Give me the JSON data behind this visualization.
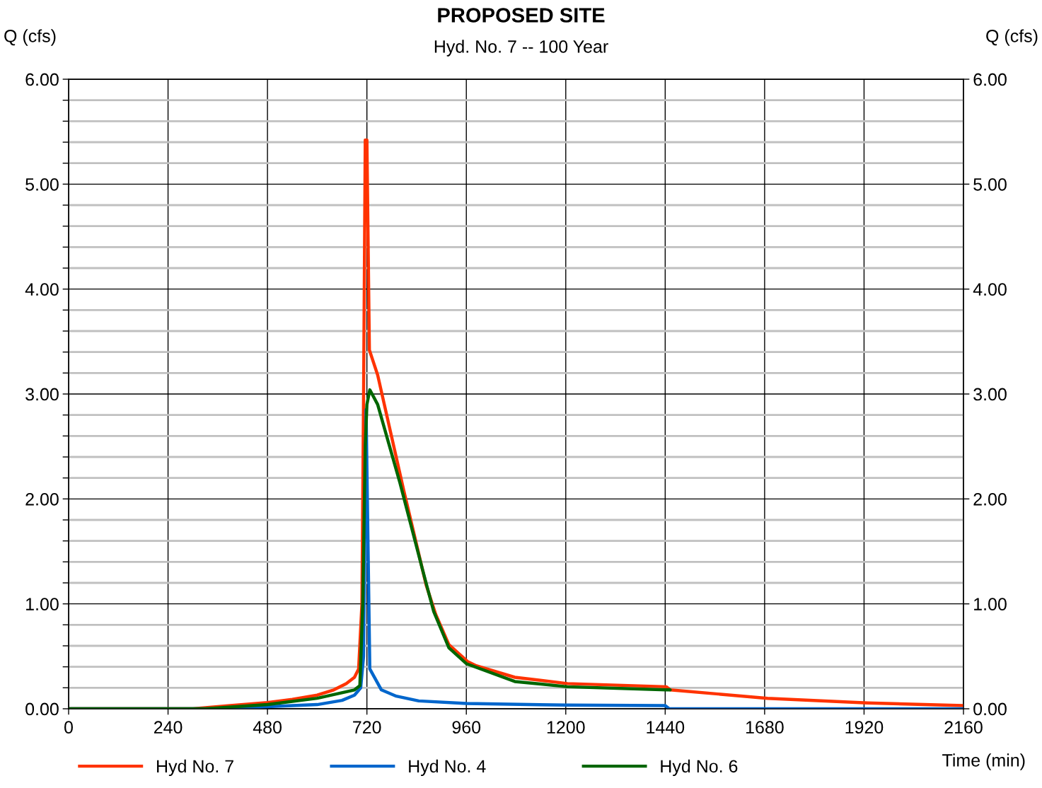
{
  "chart_data": {
    "type": "line",
    "title": "PROPOSED SITE",
    "subtitle": "Hyd. No. 7 -- 100 Year",
    "xlabel": "Time (min)",
    "ylabel": "Q (cfs)",
    "y2label": "Q (cfs)",
    "series": [
      {
        "name": "Hyd No. 7",
        "color": "#ff3300",
        "x": [
          0,
          300,
          330,
          390,
          480,
          540,
          600,
          640,
          670,
          690,
          700,
          708,
          712,
          716,
          720,
          726,
          746,
          809,
          863,
          886,
          918,
          963,
          984,
          1077,
          1204,
          1443,
          1452,
          1687,
          1928,
          2160
        ],
        "values": [
          0,
          0,
          0.01,
          0.03,
          0.06,
          0.09,
          0.13,
          0.18,
          0.24,
          0.3,
          0.38,
          1.0,
          3.0,
          5.42,
          5.42,
          3.42,
          3.18,
          2.08,
          1.18,
          0.9,
          0.61,
          0.45,
          0.41,
          0.3,
          0.24,
          0.21,
          0.18,
          0.1,
          0.055,
          0.03
        ]
      },
      {
        "name": "Hyd No. 4",
        "color": "#0066cc",
        "x": [
          0,
          400,
          480,
          600,
          660,
          690,
          705,
          712,
          718,
          727,
          755,
          791,
          845,
          960,
          1200,
          1440,
          1450,
          2160
        ],
        "values": [
          0,
          0,
          0.02,
          0.04,
          0.08,
          0.13,
          0.2,
          0.5,
          2.85,
          0.38,
          0.18,
          0.12,
          0.075,
          0.05,
          0.035,
          0.03,
          0,
          0
        ]
      },
      {
        "name": "Hyd No. 6",
        "color": "#006600",
        "x": [
          0,
          330,
          480,
          600,
          690,
          703,
          710,
          716,
          720,
          727,
          746,
          800,
          854,
          881,
          918,
          960,
          1077,
          1204,
          1443,
          1452
        ],
        "values": [
          0,
          0,
          0.04,
          0.1,
          0.18,
          0.22,
          1.0,
          2.5,
          2.9,
          3.04,
          2.9,
          2.15,
          1.33,
          0.93,
          0.58,
          0.43,
          0.26,
          0.21,
          0.18,
          0.18
        ]
      }
    ],
    "xlim": [
      0,
      2160
    ],
    "xticks": [
      0,
      240,
      480,
      720,
      960,
      1200,
      1440,
      1680,
      1920,
      2160
    ],
    "ylim": [
      0,
      6
    ],
    "y2lim": [
      0,
      6
    ],
    "yticks": [
      {
        "value": 0,
        "label": "0.00"
      },
      {
        "value": 0.2,
        "label": null
      },
      {
        "value": 0.4,
        "label": null
      },
      {
        "value": 0.6,
        "label": null
      },
      {
        "value": 0.8,
        "label": null
      },
      {
        "value": 1,
        "label": "1.00"
      },
      {
        "value": 1.2,
        "label": null
      },
      {
        "value": 1.4,
        "label": null
      },
      {
        "value": 1.6,
        "label": null
      },
      {
        "value": 1.8,
        "label": null
      },
      {
        "value": 2,
        "label": "2.00"
      },
      {
        "value": 2.2,
        "label": null
      },
      {
        "value": 2.4,
        "label": null
      },
      {
        "value": 2.6,
        "label": null
      },
      {
        "value": 2.8,
        "label": null
      },
      {
        "value": 3,
        "label": "3.00"
      },
      {
        "value": 3.2,
        "label": null
      },
      {
        "value": 3.4,
        "label": null
      },
      {
        "value": 3.6,
        "label": null
      },
      {
        "value": 3.8,
        "label": null
      },
      {
        "value": 4,
        "label": "4.00"
      },
      {
        "value": 4.2,
        "label": null
      },
      {
        "value": 4.4,
        "label": null
      },
      {
        "value": 4.6,
        "label": null
      },
      {
        "value": 4.8,
        "label": null
      },
      {
        "value": 5,
        "label": "5.00"
      },
      {
        "value": 5.2,
        "label": null
      },
      {
        "value": 5.4,
        "label": null
      },
      {
        "value": 5.6,
        "label": null
      },
      {
        "value": 5.8,
        "label": null
      },
      {
        "value": 6,
        "label": "6.00"
      }
    ],
    "y2ticks": [
      {
        "value": 0,
        "label": "0.00"
      },
      {
        "value": 1,
        "label": "1.00"
      },
      {
        "value": 2,
        "label": "2.00"
      },
      {
        "value": 3,
        "label": "3.00"
      },
      {
        "value": 4,
        "label": "4.00"
      },
      {
        "value": 5,
        "label": "5.00"
      },
      {
        "value": 6,
        "label": "6.00"
      }
    ],
    "grid": true,
    "legend": "bottom left",
    "marker": "none",
    "line_style": "solid"
  }
}
